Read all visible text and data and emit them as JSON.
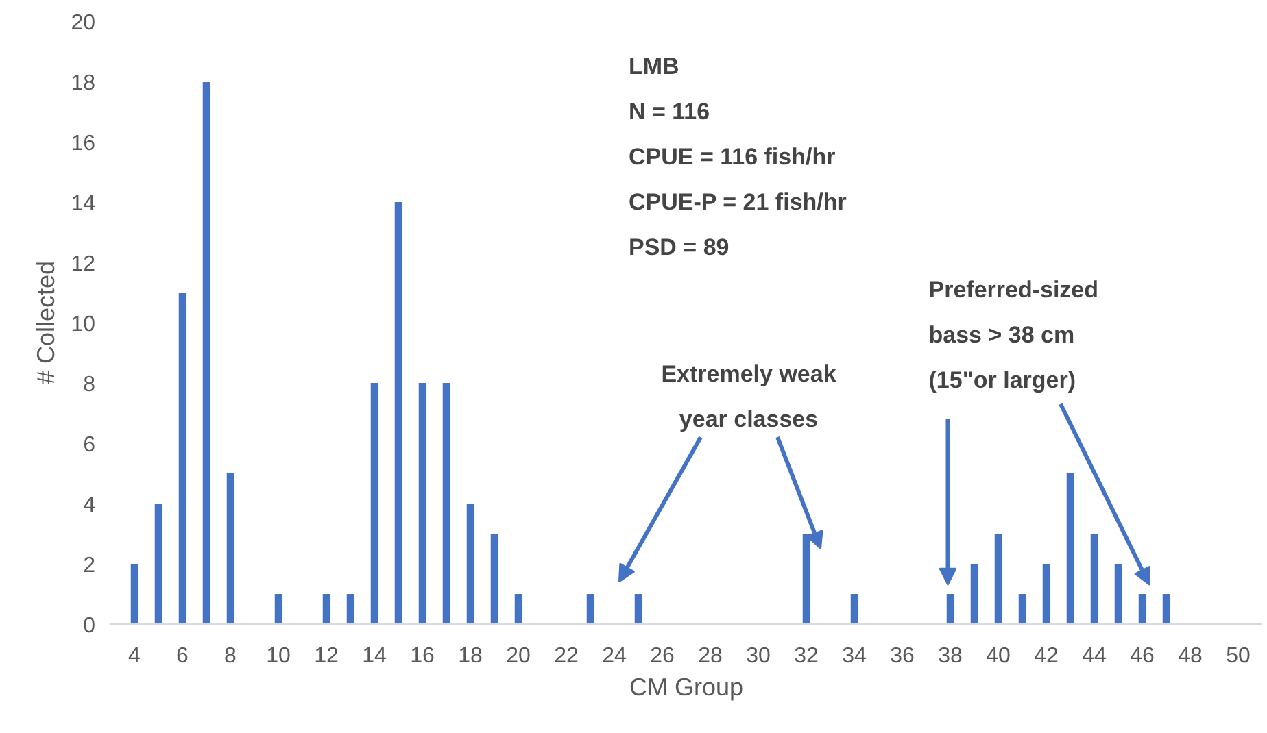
{
  "chart_data": {
    "type": "bar",
    "xlabel": "CM Group",
    "ylabel": "# Collected",
    "color": "#4472c4",
    "x": [
      4,
      5,
      6,
      7,
      8,
      10,
      12,
      13,
      14,
      15,
      16,
      17,
      18,
      19,
      20,
      23,
      25,
      32,
      34,
      38,
      39,
      40,
      41,
      42,
      43,
      44,
      45,
      46,
      47
    ],
    "values": [
      2,
      4,
      11,
      18,
      5,
      1,
      1,
      1,
      8,
      14,
      8,
      8,
      4,
      3,
      1,
      1,
      1,
      3,
      1,
      1,
      2,
      3,
      1,
      2,
      5,
      3,
      2,
      1,
      1
    ],
    "xlim": [
      3,
      51
    ],
    "xticks": [
      4,
      6,
      8,
      10,
      12,
      14,
      16,
      18,
      20,
      22,
      24,
      26,
      28,
      30,
      32,
      34,
      36,
      38,
      40,
      42,
      44,
      46,
      48,
      50
    ],
    "ylim": [
      0,
      20
    ],
    "yticks": [
      0,
      2,
      4,
      6,
      8,
      10,
      12,
      14,
      16,
      18,
      20
    ],
    "grid": false,
    "annotations": [
      "LMB\nN = 116\nCPUE = 116 fish/hr\nCPUE-P = 21 fish/hr\nPSD = 89",
      "Extremely weak\nyear classes",
      "Preferred-sized\nbass > 38 cm\n(15\"or larger)"
    ]
  }
}
